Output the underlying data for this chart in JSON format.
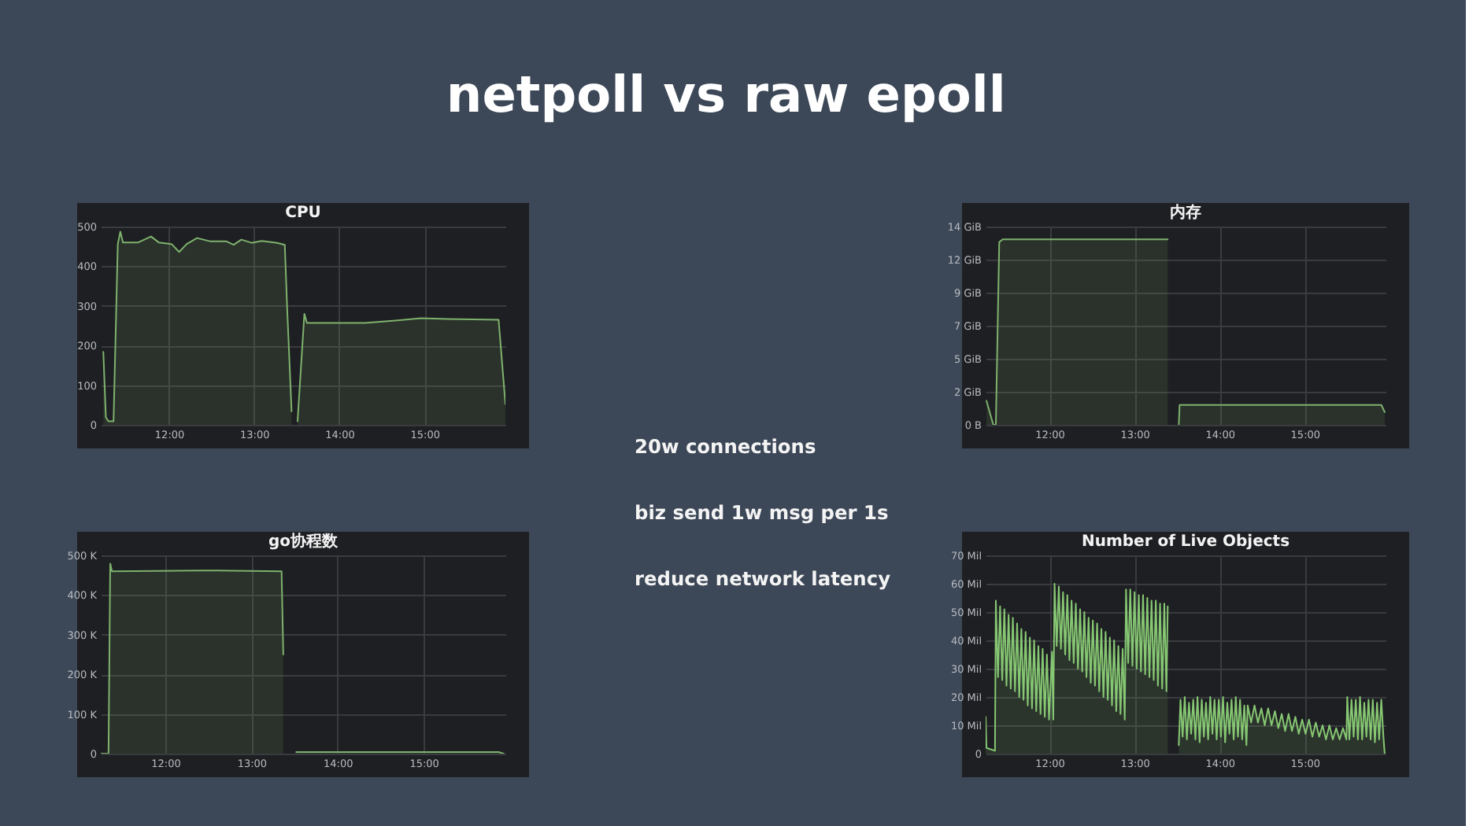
{
  "chart_data": [
    {
      "type": "other",
      "title": "netpoll vs raw epoll",
      "annotations": [
        "20w connections",
        "biz send 1w msg per 1s",
        "reduce network latency"
      ]
    },
    {
      "type": "area",
      "title": "CPU",
      "x": [
        11.23,
        11.26,
        11.29,
        11.35,
        11.4,
        11.43,
        11.46,
        11.52,
        11.64,
        11.79,
        11.88,
        12.03,
        12.12,
        12.21,
        12.33,
        12.48,
        12.67,
        12.76,
        12.85,
        12.97,
        13.09,
        13.27,
        13.36,
        13.39,
        13.44,
        13.47,
        13.51,
        13.59,
        13.62,
        13.94,
        14.3,
        14.66,
        14.96,
        15.27,
        15.87,
        15.95
      ],
      "series": [
        {
          "color": "#7eb26d",
          "values": [
            184,
            19,
            9,
            9,
            456,
            487,
            460,
            460,
            460,
            475,
            460,
            456,
            436,
            456,
            471,
            463,
            463,
            454,
            467,
            459,
            464,
            459,
            454,
            284,
            34,
            null,
            9,
            280,
            257,
            257,
            257,
            263,
            269,
            267,
            265,
            52
          ]
        }
      ],
      "xlim": [
        11.2,
        15.95
      ],
      "xticks": [
        {
          "value": 12,
          "label": "12:00"
        },
        {
          "value": 13,
          "label": "13:00"
        },
        {
          "value": 14,
          "label": "14:00"
        },
        {
          "value": 15,
          "label": "15:00"
        }
      ],
      "ylim": [
        0,
        500
      ],
      "yticks": [
        0,
        100,
        200,
        300,
        400,
        500
      ],
      "grid": true
    },
    {
      "type": "area",
      "title": "内存",
      "x": [
        11.26,
        11.34,
        11.37,
        11.41,
        11.45,
        13.39,
        13.45,
        13.52,
        13.53,
        15.9,
        15.94
      ],
      "series": [
        {
          "color": "#7eb26d",
          "values": [
            1.7,
            0,
            0,
            12.9,
            13.1,
            13.1,
            null,
            0,
            1.4,
            1.4,
            0.9
          ]
        }
      ],
      "xlim": [
        11.25,
        15.95
      ],
      "xticks": [
        {
          "value": 12,
          "label": "12:00"
        },
        {
          "value": 13,
          "label": "13:00"
        },
        {
          "value": 14,
          "label": "14:00"
        },
        {
          "value": 15,
          "label": "15:00"
        }
      ],
      "ylim": [
        0,
        14
      ],
      "yticks": [
        {
          "value": 0,
          "label": "0 B"
        },
        {
          "value": 2.33,
          "label": "2 GiB"
        },
        {
          "value": 4.67,
          "label": "5 GiB"
        },
        {
          "value": 7,
          "label": "7 GiB"
        },
        {
          "value": 9.33,
          "label": "9 GiB"
        },
        {
          "value": 11.67,
          "label": "12 GiB"
        },
        {
          "value": 14,
          "label": "14 GiB"
        }
      ],
      "grid": true
    },
    {
      "type": "area",
      "title": "go协程数",
      "x": [
        11.25,
        11.34,
        11.36,
        11.38,
        12.6,
        13.35,
        13.37,
        13.45,
        13.52,
        15.87,
        15.93
      ],
      "series": [
        {
          "color": "#7eb26d",
          "values": [
            0,
            0,
            479,
            460,
            462,
            460,
            250,
            null,
            4,
            4,
            0
          ]
        }
      ],
      "xlim": [
        11.25,
        15.95
      ],
      "xticks": [
        {
          "value": 12,
          "label": "12:00"
        },
        {
          "value": 13,
          "label": "13:00"
        },
        {
          "value": 14,
          "label": "14:00"
        },
        {
          "value": 15,
          "label": "15:00"
        }
      ],
      "ylim": [
        0,
        500
      ],
      "yticks": [
        0,
        {
          "value": 100,
          "label": "100 K"
        },
        {
          "value": 200,
          "label": "200 K"
        },
        {
          "value": 300,
          "label": "300 K"
        },
        {
          "value": 400,
          "label": "400 K"
        },
        {
          "value": 500,
          "label": "500 K"
        }
      ],
      "grid": true
    },
    {
      "type": "area",
      "title": "Number of Live Objects",
      "x": [
        11.25,
        11.26,
        11.36,
        11.37,
        11.395,
        11.42,
        11.445,
        11.47,
        11.495,
        11.52,
        11.545,
        11.57,
        11.595,
        11.62,
        11.645,
        11.67,
        11.695,
        11.72,
        11.745,
        11.77,
        11.795,
        11.82,
        11.845,
        11.87,
        11.895,
        11.92,
        11.945,
        11.97,
        11.995,
        12.03,
        12.045,
        12.06,
        12.085,
        12.11,
        12.135,
        12.16,
        12.185,
        12.21,
        12.235,
        12.26,
        12.285,
        12.31,
        12.335,
        12.36,
        12.385,
        12.41,
        12.435,
        12.46,
        12.485,
        12.51,
        12.535,
        12.56,
        12.585,
        12.61,
        12.635,
        12.66,
        12.685,
        12.71,
        12.735,
        12.76,
        12.785,
        12.81,
        12.835,
        12.86,
        12.885,
        12.9,
        12.925,
        12.95,
        12.975,
        13.0,
        13.025,
        13.05,
        13.075,
        13.1,
        13.125,
        13.15,
        13.175,
        13.2,
        13.225,
        13.25,
        13.275,
        13.3,
        13.325,
        13.35,
        13.375,
        13.39,
        13.45,
        13.52,
        13.54,
        13.565,
        13.59,
        13.615,
        13.64,
        13.665,
        13.69,
        13.715,
        13.74,
        13.765,
        13.79,
        13.815,
        13.84,
        13.865,
        13.89,
        13.915,
        13.94,
        13.965,
        13.99,
        14.015,
        14.04,
        14.065,
        14.09,
        14.115,
        14.14,
        14.165,
        14.19,
        14.215,
        14.24,
        14.265,
        14.29,
        14.315,
        14.33,
        14.37,
        14.41,
        14.45,
        14.49,
        14.53,
        14.57,
        14.61,
        14.65,
        14.69,
        14.73,
        14.77,
        14.81,
        14.85,
        14.89,
        14.93,
        14.97,
        15.01,
        15.05,
        15.09,
        15.13,
        15.17,
        15.21,
        15.25,
        15.29,
        15.33,
        15.37,
        15.41,
        15.45,
        15.49,
        15.5,
        15.525,
        15.55,
        15.575,
        15.6,
        15.625,
        15.65,
        15.675,
        15.7,
        15.725,
        15.75,
        15.775,
        15.8,
        15.825,
        15.85,
        15.875,
        15.9,
        15.925,
        15.94
      ],
      "series": [
        {
          "color": "#86c773",
          "values": [
            13,
            2,
            1,
            54,
            27,
            52,
            26,
            51,
            24,
            49,
            23,
            48,
            22,
            46,
            20,
            44,
            19,
            43,
            17,
            41,
            16,
            40,
            15,
            38,
            14,
            37,
            13,
            35,
            12,
            36,
            12,
            60,
            38,
            59,
            37,
            57,
            35,
            56,
            33,
            54,
            32,
            53,
            30,
            51,
            29,
            50,
            27,
            48,
            25,
            47,
            24,
            46,
            22,
            44,
            20,
            43,
            19,
            41,
            17,
            40,
            15,
            38,
            14,
            37,
            12,
            58,
            32,
            58,
            31,
            57,
            30,
            56,
            29,
            56,
            28,
            55,
            27,
            54,
            26,
            54,
            24,
            53,
            23,
            53,
            22,
            52,
            null,
            3,
            19,
            6,
            20,
            5,
            18,
            7,
            19,
            5,
            20,
            4,
            19,
            6,
            18,
            5,
            20,
            7,
            19,
            5,
            19,
            6,
            20,
            4,
            18,
            7,
            19,
            5,
            20,
            6,
            19,
            5,
            17,
            3,
            17,
            11,
            17,
            11,
            16,
            10,
            16,
            10,
            15,
            9,
            14,
            8,
            14,
            8,
            13,
            7,
            12,
            7,
            12,
            6,
            11,
            6,
            10,
            5,
            10,
            5,
            9,
            5,
            9,
            5,
            20,
            5,
            19,
            6,
            19,
            5,
            20,
            5,
            18,
            6,
            19,
            5,
            19,
            4,
            18,
            5,
            19,
            6,
            0
          ]
        }
      ],
      "xlim": [
        11.25,
        15.95
      ],
      "xticks": [
        {
          "value": 12,
          "label": "12:00"
        },
        {
          "value": 13,
          "label": "13:00"
        },
        {
          "value": 14,
          "label": "14:00"
        },
        {
          "value": 15,
          "label": "15:00"
        }
      ],
      "ylim": [
        0,
        70
      ],
      "yticks": [
        0,
        {
          "value": 10,
          "label": "10 Mil"
        },
        {
          "value": 20,
          "label": "20 Mil"
        },
        {
          "value": 30,
          "label": "30 Mil"
        },
        {
          "value": 40,
          "label": "40 Mil"
        },
        {
          "value": 50,
          "label": "50 Mil"
        },
        {
          "value": 60,
          "label": "60 Mil"
        },
        {
          "value": 70,
          "label": "70 Mil"
        }
      ],
      "grid": true
    }
  ]
}
